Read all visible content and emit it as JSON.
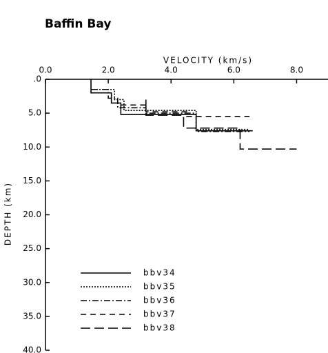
{
  "chart_data": {
    "type": "step-line",
    "title": "Baffin Bay",
    "x_label": "VELOCITY (km/s)",
    "y_label": "DEPTH (km)",
    "xlim": [
      0,
      9
    ],
    "ylim": [
      0,
      40
    ],
    "y_inverted": true,
    "x_axis_position": "top",
    "xticks": [
      {
        "value": 0,
        "label": "0.0"
      },
      {
        "value": 2,
        "label": "2.0"
      },
      {
        "value": 4,
        "label": "4.0"
      },
      {
        "value": 6,
        "label": "6.0"
      },
      {
        "value": 8,
        "label": "8.0"
      }
    ],
    "yticks": [
      {
        "value": 0,
        "label": ".0"
      },
      {
        "value": 5,
        "label": "5.0"
      },
      {
        "value": 10,
        "label": "10.0"
      },
      {
        "value": 15,
        "label": "15.0"
      },
      {
        "value": 20,
        "label": "20.0"
      },
      {
        "value": 25,
        "label": "25.0"
      },
      {
        "value": 30,
        "label": "30.0"
      },
      {
        "value": 35,
        "label": "35.0"
      },
      {
        "value": 40,
        "label": "40.0"
      }
    ],
    "legend": "lower-left",
    "series": [
      {
        "name": "bbv34",
        "color": "#000000",
        "dash": "solid",
        "x": [
          1.45,
          1.45,
          2.1,
          2.1,
          2.4,
          2.4,
          4.8,
          4.8,
          6.6
        ],
        "y": [
          0,
          2.0,
          2.0,
          3.5,
          3.5,
          5.2,
          5.2,
          7.6,
          7.6
        ]
      },
      {
        "name": "bbv35",
        "color": "#000000",
        "dash": "dotted",
        "x": [
          1.45,
          2.2,
          2.2,
          2.5,
          2.5,
          4.8,
          4.8,
          6.5
        ],
        "y": [
          1.5,
          1.5,
          3.0,
          3.0,
          4.6,
          4.6,
          7.4,
          7.4
        ]
      },
      {
        "name": "bbv36",
        "color": "#000000",
        "dash": "dash-dot",
        "x": [
          1.45,
          2.0,
          2.0,
          2.3,
          2.3,
          3.2,
          3.2,
          4.8,
          4.8,
          6.5
        ],
        "y": [
          1.5,
          1.5,
          2.8,
          2.8,
          4.2,
          4.2,
          5.0,
          5.0,
          7.7,
          7.7
        ]
      },
      {
        "name": "bbv37",
        "color": "#000000",
        "dash": "dashed",
        "x": [
          2.4,
          3.2,
          3.2,
          4.5,
          4.5,
          6.5
        ],
        "y": [
          3.8,
          3.8,
          4.8,
          4.8,
          5.5,
          5.5
        ]
      },
      {
        "name": "bbv38",
        "color": "#000000",
        "dash": "long-dash",
        "x": [
          3.2,
          3.2,
          4.4,
          4.4,
          6.2,
          6.2,
          8.0
        ],
        "y": [
          3.0,
          5.3,
          5.3,
          7.2,
          7.2,
          10.3,
          10.3
        ]
      }
    ]
  }
}
